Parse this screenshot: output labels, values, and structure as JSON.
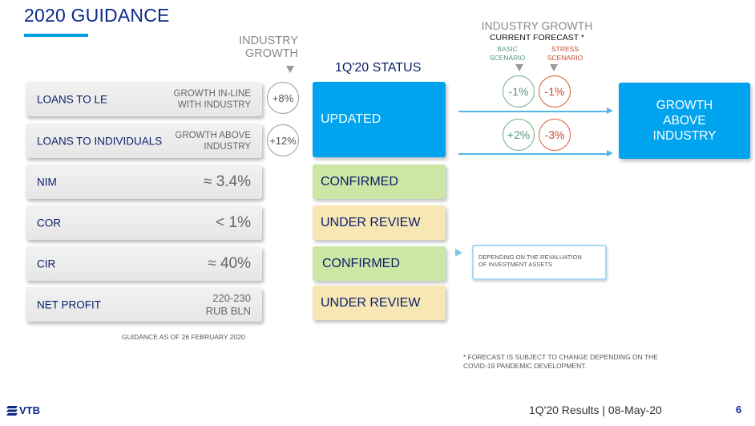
{
  "header": {
    "title": "2020 GUIDANCE"
  },
  "columns": {
    "industry_growth": "INDUSTRY\nGROWTH",
    "status": "1Q'20 STATUS",
    "forecast_title": "INDUSTRY GROWTH",
    "forecast_subtitle": "CURRENT FORECAST *",
    "basic": "BASIC\nSCENARIO",
    "stress": "STRESS\nSCENARIO"
  },
  "rows": [
    {
      "label": "LOANS TO LE",
      "note": "GROWTH IN-LINE\nWITH INDUSTRY",
      "industry": "+8%",
      "basic": "-1%",
      "stress": "-1%"
    },
    {
      "label": "LOANS TO INDIVIDUALS",
      "note": "GROWTH ABOVE\nINDUSTRY",
      "industry": "+12%",
      "basic": "+2%",
      "stress": "-3%"
    },
    {
      "label": "NIM",
      "value": "≈ 3.4%"
    },
    {
      "label": "COR",
      "value": "< 1%"
    },
    {
      "label": "CIR",
      "value": "≈ 40%"
    },
    {
      "label": "NET PROFIT",
      "value": "220-230\nRUB BLN"
    }
  ],
  "statuses": {
    "loans": "UPDATED",
    "nim": "CONFIRMED",
    "cor": "UNDER REVIEW",
    "cir": "CONFIRMED",
    "net_profit": "UNDER REVIEW"
  },
  "outcome": "GROWTH\nABOVE\nINDUSTRY",
  "cir_note": "DEPENDING ON THE REVALUATION\nOF INVESTMENT ASSETS",
  "guidance_date": "GUIDANCE AS OF 26 FEBRUARY 2020",
  "footnote": "* FORECAST IS SUBJECT TO CHANGE DEPENDING ON THE\nCOVID-19 PANDEMIC DEVELOPMENT.",
  "footer": {
    "logo": "VTB",
    "report": "1Q'20 Results |  08-May-20",
    "page": "6"
  },
  "colors": {
    "accent_blue": "#00a3ee",
    "navy": "#0a2a8a",
    "green_box": "#cce6a6",
    "yellow_box": "#f6e7b5",
    "basic_green": "#4e9a72",
    "stress_red": "#c84a2a"
  }
}
